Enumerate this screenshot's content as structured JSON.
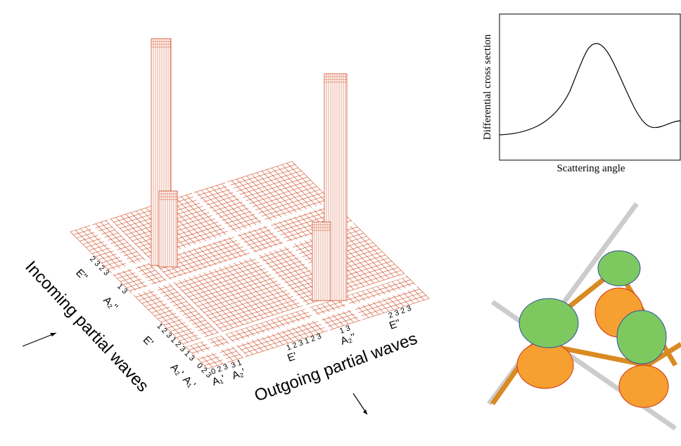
{
  "figure": {
    "matrix": {
      "y_label": "Incoming partial waves",
      "x_label": "Outgoing partial waves",
      "row_labels": [
        {
          "symmetry": "A₁'",
          "indices": "0 2 3"
        },
        {
          "symmetry": "A₂'",
          "indices": "1 3"
        },
        {
          "symmetry": "E'",
          "indices": "1 2 3 1 2 3"
        },
        {
          "symmetry": "A₂''",
          "indices": "1 3"
        },
        {
          "symmetry": "E''",
          "indices": "2 3 2 3"
        }
      ],
      "col_labels": [
        {
          "symmetry": "A₁'",
          "indices": "0 2 3"
        },
        {
          "symmetry": "A₂'",
          "indices": "3 1"
        },
        {
          "symmetry": "E'",
          "indices": "1 2 3 1 2 3"
        },
        {
          "symmetry": "A₂''",
          "indices": "1 3"
        },
        {
          "symmetry": "E''",
          "indices": "2 3 2 3"
        }
      ]
    },
    "inset": {
      "y_label": "Differential cross section",
      "x_label": "Scattering angle"
    }
  }
}
